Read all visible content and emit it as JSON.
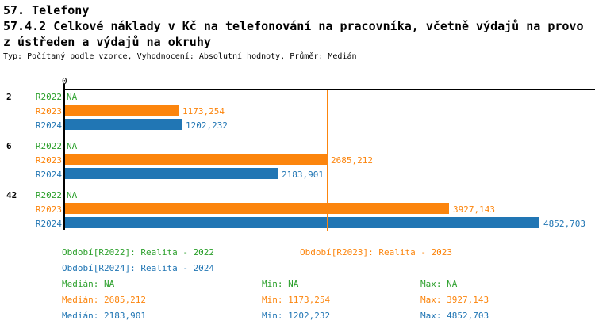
{
  "header": {
    "line1": "57. Telefony",
    "line2": "57.4.2 Celkové náklady v Kč na telefonování na pracovníka, včetně výdajů na provo",
    "line3": "z ústředen a výdajů na okruhy",
    "subtitle": "Typ: Počítaný podle vzorce, Vyhodnocení: Absolutní hodnoty, Průměr: Medián"
  },
  "colors": {
    "green": "#2ca02c",
    "orange": "#fc850d",
    "blue": "#2176b4",
    "axis": "#000000"
  },
  "chart_data": {
    "type": "bar",
    "orientation": "horizontal",
    "title": "57.4.2 Celkové náklady v Kč na telefonování na pracovníka, včetně výdajů na provoz ústředen a výdajů na okruhy",
    "x_axis": {
      "origin_tick_label": "0",
      "xlim": [
        0,
        5418
      ],
      "grid": false
    },
    "categories": [
      "2",
      "6",
      "42"
    ],
    "series": [
      {
        "name": "R2022",
        "color_key": "green",
        "values": [
          null,
          null,
          null
        ],
        "labels": [
          "NA",
          "NA",
          "NA"
        ]
      },
      {
        "name": "R2023",
        "color_key": "orange",
        "values": [
          1173.254,
          2685.212,
          3927.143
        ],
        "labels": [
          "1173,254",
          "2685,212",
          "3927,143"
        ]
      },
      {
        "name": "R2024",
        "color_key": "blue",
        "values": [
          1202.232,
          2183.901,
          4852.703
        ],
        "labels": [
          "1202,232",
          "2183,901",
          "4852,703"
        ]
      }
    ],
    "median_lines": [
      {
        "series": "R2024",
        "value": 2183.901,
        "color_key": "blue"
      },
      {
        "series": "R2023",
        "value": 2685.212,
        "color_key": "orange"
      }
    ]
  },
  "legend": {
    "items": [
      {
        "text": "Období[R2022]: Realita - 2022",
        "color_key": "green"
      },
      {
        "text": "Období[R2023]: Realita - 2023",
        "color_key": "orange"
      },
      {
        "text": "Období[R2024]: Realita - 2024",
        "color_key": "blue"
      }
    ]
  },
  "stats": {
    "rows": [
      {
        "color_key": "green",
        "median": "Medián: NA",
        "min": "Min: NA",
        "max": "Max: NA"
      },
      {
        "color_key": "orange",
        "median": "Medián: 2685,212",
        "min": "Min: 1173,254",
        "max": "Max: 3927,143"
      },
      {
        "color_key": "blue",
        "median": "Medián: 2183,901",
        "min": "Min: 1202,232",
        "max": "Max: 4852,703"
      }
    ]
  }
}
